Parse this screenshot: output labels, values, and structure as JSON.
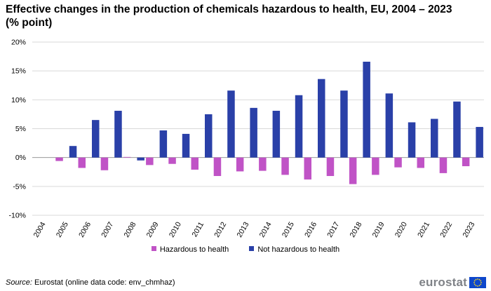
{
  "title": "Effective changes in the production of chemicals hazardous to health, EU, 2004 – 2023 (% point)",
  "source_label": "Source:",
  "source_text": "Eurostat (online data code: env_chmhaz)",
  "logo_text": "eurostat",
  "colors": {
    "hazardous": "#c053c6",
    "not_hazardous": "#2a40a8",
    "grid": "#d9d9d9"
  },
  "chart_data": {
    "type": "bar",
    "categories": [
      "2004",
      "2005",
      "2006",
      "2007",
      "2008",
      "2009",
      "2010",
      "2011",
      "2012",
      "2013",
      "2014",
      "2015",
      "2016",
      "2017",
      "2018",
      "2019",
      "2020",
      "2021",
      "2022",
      "2023"
    ],
    "series": [
      {
        "name": "Hazardous to health",
        "values": [
          0,
          -0.6,
          -1.8,
          -2.2,
          0.1,
          -1.3,
          -1.1,
          -2.1,
          -3.2,
          -2.4,
          -2.3,
          -3.0,
          -3.8,
          -3.2,
          -4.6,
          -3.0,
          -1.7,
          -1.8,
          -2.7,
          -1.5
        ]
      },
      {
        "name": "Not hazardous to health",
        "values": [
          0,
          2.0,
          6.5,
          8.1,
          -0.5,
          4.7,
          4.1,
          7.5,
          11.6,
          8.6,
          8.1,
          10.8,
          13.6,
          11.6,
          16.6,
          11.1,
          6.1,
          6.7,
          9.7,
          5.3
        ]
      }
    ],
    "y_ticks": [
      "20%",
      "15%",
      "10%",
      "5%",
      "0%",
      "-5%",
      "-10%"
    ],
    "ylim": [
      -10,
      20
    ],
    "xlabel": "",
    "ylabel": "",
    "grid": true,
    "legend_position": "bottom"
  }
}
